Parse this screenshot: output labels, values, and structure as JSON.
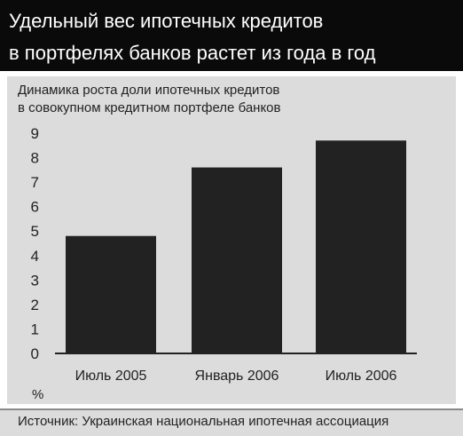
{
  "header": {
    "title_line1": "Удельный вес ипотечных кредитов",
    "title_line2": "в портфелях банков растет из года в год"
  },
  "subtitle_line1": "Динамика роста доли ипотечных кредитов",
  "subtitle_line2": "в совокупном кредитном портфеле банков",
  "unit_label": "%",
  "source": "Источник: Украинская национальная ипотечная ассоциация",
  "colors": {
    "bar": "#222222",
    "panel": "#dcdcdc",
    "header": "#0a0a0a"
  },
  "chart_data": {
    "type": "bar",
    "categories": [
      "Июль 2005",
      "Январь 2006",
      "Июль 2006"
    ],
    "values": [
      4.8,
      7.6,
      8.7
    ],
    "ylim": [
      0,
      9
    ],
    "yticks": [
      0,
      1,
      2,
      3,
      4,
      5,
      6,
      7,
      8,
      9
    ],
    "ylabel": "%",
    "grid": false
  }
}
